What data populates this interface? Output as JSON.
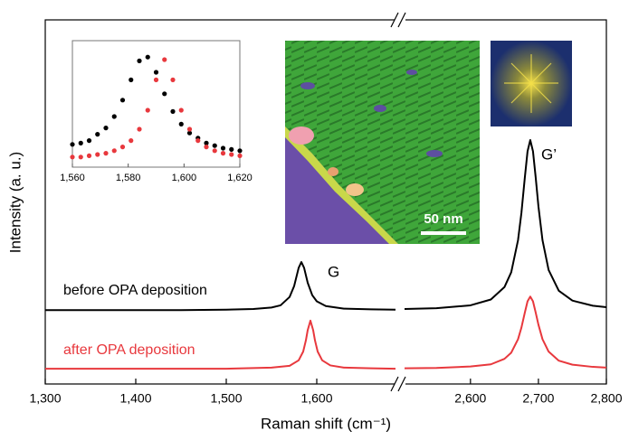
{
  "chart_data": {
    "type": "line",
    "xlabel": "Raman shift (cm⁻¹)",
    "ylabel": "Intensity (a. u.)",
    "ylim": [
      0,
      10
    ],
    "x_segments": [
      {
        "xlim": [
          1300,
          1687
        ],
        "xticks": [
          {
            "value": 1300,
            "label": "1,300"
          },
          {
            "value": 1400,
            "label": "1,400"
          },
          {
            "value": 1500,
            "label": "1,500"
          },
          {
            "value": 1600,
            "label": "1,600"
          }
        ]
      },
      {
        "xlim": [
          2503,
          2800
        ],
        "xticks": [
          {
            "value": 2600,
            "label": "2,600"
          },
          {
            "value": 2700,
            "label": "2,700"
          },
          {
            "value": 2800,
            "label": "2,800"
          }
        ]
      }
    ],
    "series": [
      {
        "name": "before OPA deposition",
        "color": "#000000",
        "segments": [
          {
            "x": [
              1300,
              1350,
              1400,
              1450,
              1500,
              1530,
              1550,
              1560,
              1570,
              1575,
              1580,
              1583,
              1586,
              1590,
              1595,
              1600,
              1610,
              1630,
              1660,
              1687
            ],
            "values": [
              2.03,
              2.03,
              2.03,
              2.03,
              2.04,
              2.06,
              2.1,
              2.16,
              2.39,
              2.69,
              3.19,
              3.35,
              3.19,
              2.78,
              2.44,
              2.27,
              2.14,
              2.07,
              2.05,
              2.04
            ]
          },
          {
            "x": [
              2503,
              2550,
              2600,
              2630,
              2650,
              2660,
              2670,
              2675,
              2680,
              2684,
              2688,
              2692,
              2696,
              2700,
              2706,
              2715,
              2730,
              2750,
              2780,
              2800
            ],
            "values": [
              2.06,
              2.08,
              2.16,
              2.32,
              2.66,
              3.07,
              3.95,
              4.7,
              5.67,
              6.39,
              6.7,
              6.39,
              5.67,
              4.88,
              3.95,
              3.13,
              2.56,
              2.29,
              2.15,
              2.11
            ]
          }
        ]
      },
      {
        "name": "after OPA deposition",
        "color": "#e8383d",
        "segments": [
          {
            "x": [
              1300,
              1400,
              1500,
              1550,
              1570,
              1580,
              1585,
              1588,
              1590,
              1593,
              1596,
              1598,
              1601,
              1606,
              1615,
              1630,
              1660,
              1687
            ],
            "values": [
              0.42,
              0.42,
              0.42,
              0.45,
              0.5,
              0.65,
              0.89,
              1.2,
              1.48,
              1.74,
              1.48,
              1.2,
              0.89,
              0.65,
              0.51,
              0.45,
              0.43,
              0.42
            ]
          },
          {
            "x": [
              2503,
              2550,
              2600,
              2630,
              2650,
              2660,
              2670,
              2675,
              2680,
              2684,
              2688,
              2692,
              2696,
              2700,
              2706,
              2715,
              2730,
              2750,
              2780,
              2800
            ],
            "values": [
              0.43,
              0.44,
              0.48,
              0.54,
              0.69,
              0.86,
              1.23,
              1.55,
              1.96,
              2.27,
              2.4,
              2.27,
              1.96,
              1.63,
              1.23,
              0.89,
              0.64,
              0.53,
              0.47,
              0.45
            ]
          }
        ]
      }
    ],
    "annotations": [
      "G",
      "G’"
    ],
    "image_scale_label": "50 nm",
    "inset": {
      "type": "scatter",
      "xlim": [
        1560,
        1620
      ],
      "ylim": [
        0,
        1
      ],
      "xticks": [
        {
          "value": 1560,
          "label": "1,560"
        },
        {
          "value": 1580,
          "label": "1,580"
        },
        {
          "value": 1600,
          "label": "1,600"
        },
        {
          "value": 1620,
          "label": "1,620"
        }
      ],
      "series": [
        {
          "color": "#000000",
          "x": [
            1560,
            1563,
            1566,
            1569,
            1572,
            1575,
            1578,
            1581,
            1584,
            1587,
            1590,
            1593,
            1596,
            1599,
            1602,
            1605,
            1608,
            1611,
            1614,
            1617,
            1620
          ],
          "values": [
            0.18,
            0.19,
            0.21,
            0.26,
            0.31,
            0.4,
            0.53,
            0.69,
            0.84,
            0.87,
            0.75,
            0.58,
            0.44,
            0.34,
            0.27,
            0.23,
            0.19,
            0.17,
            0.15,
            0.14,
            0.13
          ]
        },
        {
          "color": "#e8383d",
          "x": [
            1560,
            1563,
            1566,
            1569,
            1572,
            1575,
            1578,
            1581,
            1584,
            1587,
            1590,
            1593,
            1596,
            1599,
            1602,
            1605,
            1608,
            1611,
            1614,
            1617,
            1620
          ],
          "values": [
            0.08,
            0.08,
            0.09,
            0.1,
            0.11,
            0.13,
            0.16,
            0.21,
            0.3,
            0.45,
            0.69,
            0.85,
            0.69,
            0.45,
            0.3,
            0.21,
            0.16,
            0.13,
            0.11,
            0.1,
            0.09
          ]
        }
      ]
    }
  }
}
